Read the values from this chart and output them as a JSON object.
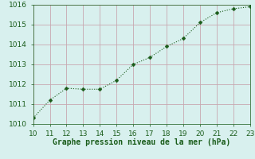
{
  "x": [
    10,
    11,
    12,
    13,
    14,
    15,
    16,
    17,
    18,
    19,
    20,
    21,
    22,
    23
  ],
  "y": [
    1010.3,
    1011.2,
    1011.8,
    1011.75,
    1011.75,
    1012.2,
    1013.0,
    1013.35,
    1013.9,
    1014.3,
    1015.1,
    1015.6,
    1015.8,
    1015.9
  ],
  "xlim": [
    10,
    23
  ],
  "ylim": [
    1010,
    1016
  ],
  "xticks": [
    10,
    11,
    12,
    13,
    14,
    15,
    16,
    17,
    18,
    19,
    20,
    21,
    22,
    23
  ],
  "yticks": [
    1010,
    1011,
    1012,
    1013,
    1014,
    1015,
    1016
  ],
  "xlabel": "Graphe pression niveau de la mer (hPa)",
  "line_color": "#1a5c1a",
  "marker": "D",
  "marker_size": 2.5,
  "bg_color": "#d8f0ee",
  "grid_color": "#c8a8b0",
  "tick_color": "#1a5c1a",
  "label_color": "#1a5c1a",
  "tick_fontsize": 6.5,
  "xlabel_fontsize": 7.0,
  "spine_color": "#1a5c1a"
}
